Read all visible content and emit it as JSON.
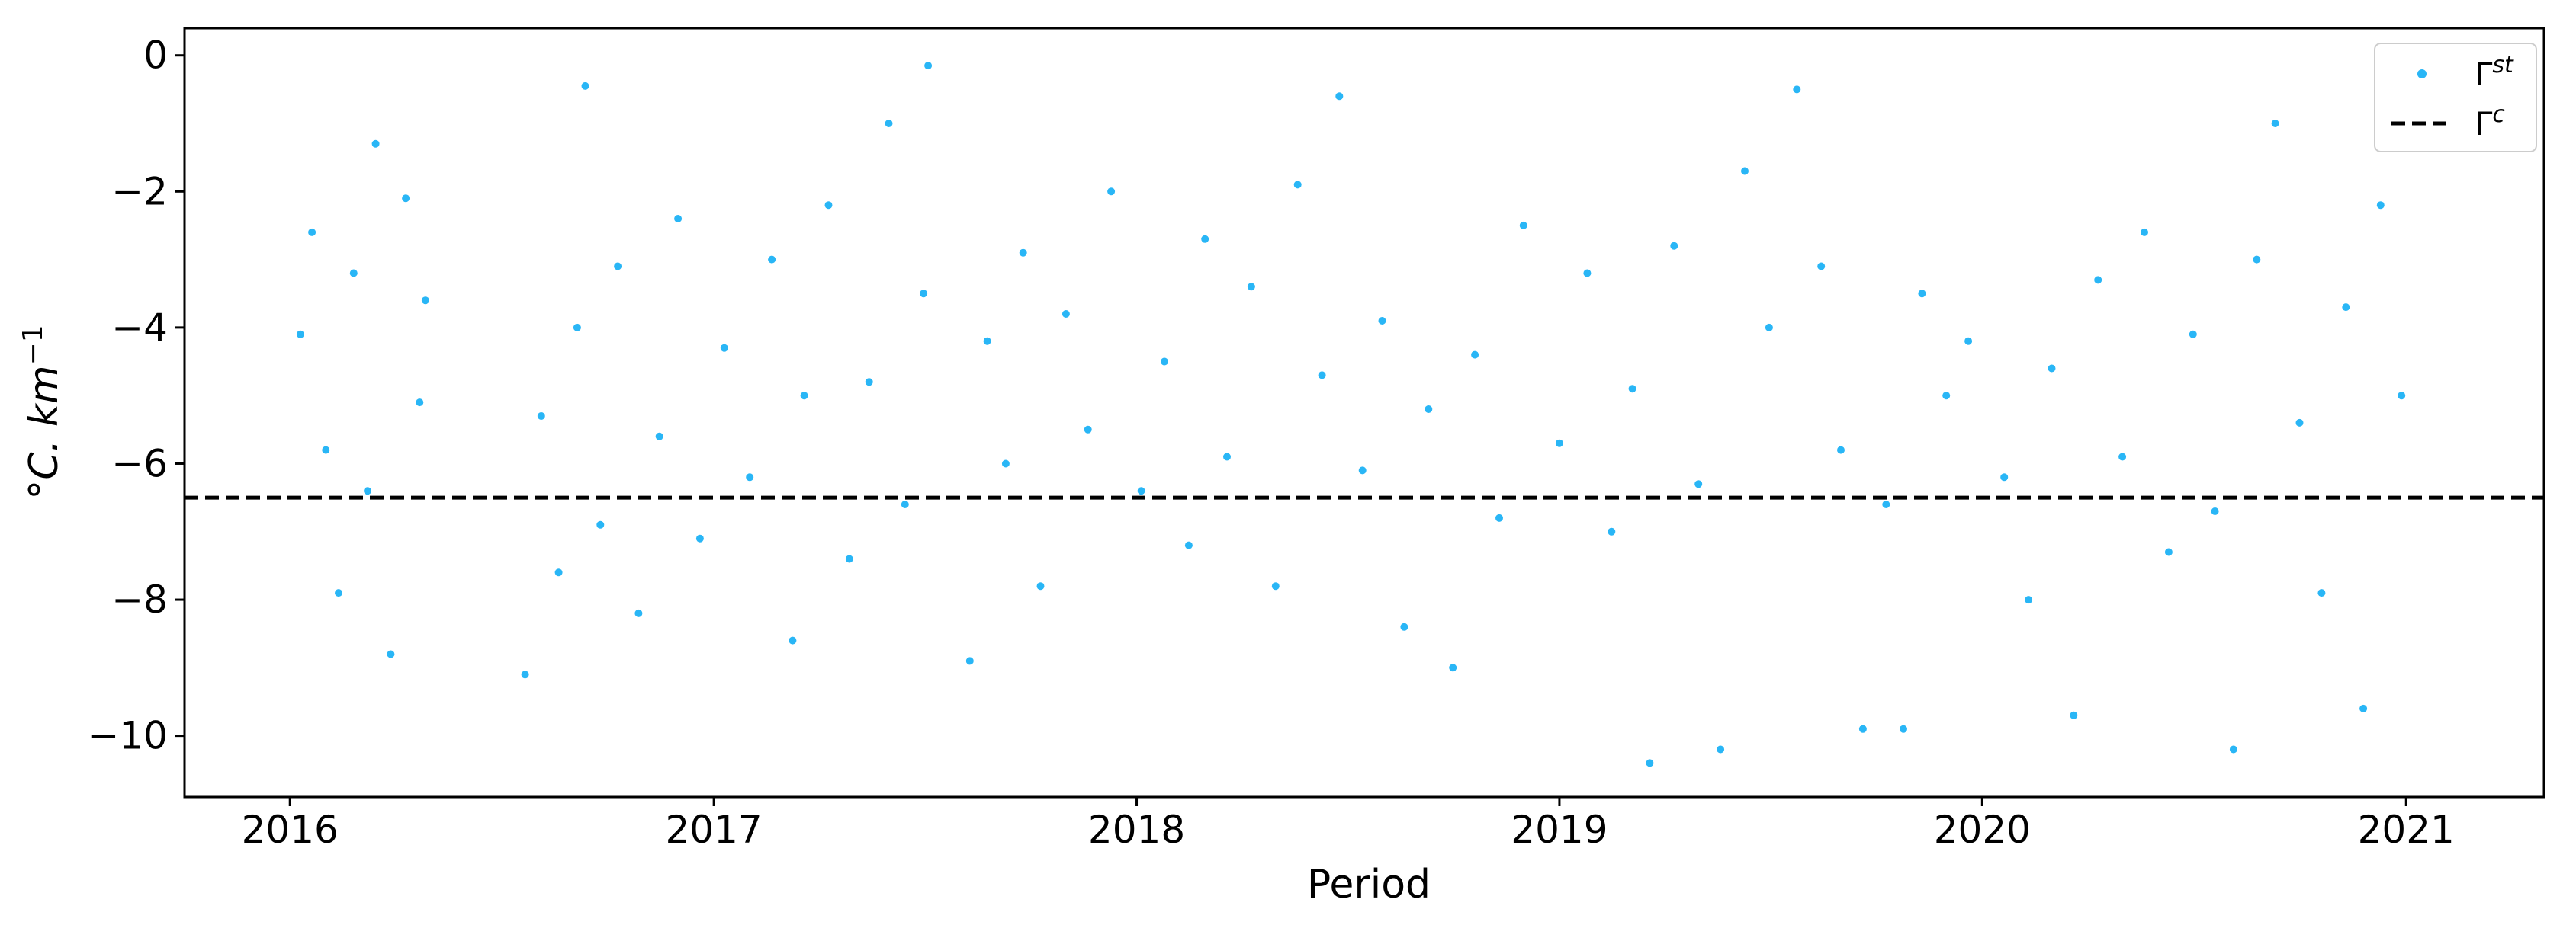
{
  "chart_data": {
    "type": "scatter",
    "xlabel": "Period",
    "ylabel_parts": {
      "degree": "°",
      "unit": "C. km",
      "exponent": "−1"
    },
    "xlim": [
      "2015-10-02",
      "2021-04-30"
    ],
    "ylim": [
      -10.9,
      0.4
    ],
    "x_ticks": [
      {
        "date": "2016-01-01",
        "label": "2016"
      },
      {
        "date": "2017-01-01",
        "label": "2017"
      },
      {
        "date": "2018-01-01",
        "label": "2018"
      },
      {
        "date": "2019-01-01",
        "label": "2019"
      },
      {
        "date": "2020-01-01",
        "label": "2020"
      },
      {
        "date": "2021-01-01",
        "label": "2021"
      }
    ],
    "y_ticks": [
      {
        "value": 0,
        "label": "0"
      },
      {
        "value": -2,
        "label": "−2"
      },
      {
        "value": -4,
        "label": "−4"
      },
      {
        "value": -6,
        "label": "−6"
      },
      {
        "value": -8,
        "label": "−8"
      },
      {
        "value": -10,
        "label": "−10"
      }
    ],
    "grid": false,
    "legend_position": "top-right",
    "series": [
      {
        "name_symbol": "Γ",
        "name_superscript": "st",
        "kind": "scatter",
        "color": "#29b6f6",
        "points": [
          [
            "2016-01-10",
            -4.1
          ],
          [
            "2016-01-20",
            -2.6
          ],
          [
            "2016-02-01",
            -5.8
          ],
          [
            "2016-02-12",
            -7.9
          ],
          [
            "2016-02-25",
            -3.2
          ],
          [
            "2016-03-08",
            -6.4
          ],
          [
            "2016-03-15",
            -1.3
          ],
          [
            "2016-03-28",
            -8.8
          ],
          [
            "2016-04-10",
            -2.1
          ],
          [
            "2016-04-22",
            -5.1
          ],
          [
            "2016-04-27",
            -3.6
          ],
          [
            "2016-07-22",
            -9.1
          ],
          [
            "2016-08-05",
            -5.3
          ],
          [
            "2016-08-20",
            -7.6
          ],
          [
            "2016-09-05",
            -4.0
          ],
          [
            "2016-09-12",
            -0.45
          ],
          [
            "2016-09-25",
            -6.9
          ],
          [
            "2016-10-10",
            -3.1
          ],
          [
            "2016-10-28",
            -8.2
          ],
          [
            "2016-11-15",
            -5.6
          ],
          [
            "2016-12-01",
            -2.4
          ],
          [
            "2016-12-20",
            -7.1
          ],
          [
            "2017-01-10",
            -4.3
          ],
          [
            "2017-02-01",
            -6.2
          ],
          [
            "2017-02-20",
            -3.0
          ],
          [
            "2017-03-10",
            -8.6
          ],
          [
            "2017-03-20",
            -5.0
          ],
          [
            "2017-04-10",
            -2.2
          ],
          [
            "2017-04-28",
            -7.4
          ],
          [
            "2017-05-15",
            -4.8
          ],
          [
            "2017-06-01",
            -1.0
          ],
          [
            "2017-06-15",
            -6.6
          ],
          [
            "2017-07-01",
            -3.5
          ],
          [
            "2017-07-05",
            -0.15
          ],
          [
            "2017-08-10",
            -8.9
          ],
          [
            "2017-08-25",
            -4.2
          ],
          [
            "2017-09-10",
            -6.0
          ],
          [
            "2017-09-25",
            -2.9
          ],
          [
            "2017-10-10",
            -7.8
          ],
          [
            "2017-11-01",
            -3.8
          ],
          [
            "2017-11-20",
            -5.5
          ],
          [
            "2017-12-10",
            -2.0
          ],
          [
            "2018-01-05",
            -6.4
          ],
          [
            "2018-01-25",
            -4.5
          ],
          [
            "2018-02-15",
            -7.2
          ],
          [
            "2018-03-01",
            -2.7
          ],
          [
            "2018-03-20",
            -5.9
          ],
          [
            "2018-04-10",
            -3.4
          ],
          [
            "2018-05-01",
            -7.8
          ],
          [
            "2018-05-20",
            -1.9
          ],
          [
            "2018-06-10",
            -4.7
          ],
          [
            "2018-06-25",
            -0.6
          ],
          [
            "2018-07-15",
            -6.1
          ],
          [
            "2018-08-01",
            -3.9
          ],
          [
            "2018-08-20",
            -8.4
          ],
          [
            "2018-09-10",
            -5.2
          ],
          [
            "2018-10-01",
            -9.0
          ],
          [
            "2018-10-20",
            -4.4
          ],
          [
            "2018-11-10",
            -6.8
          ],
          [
            "2018-12-01",
            -2.5
          ],
          [
            "2019-01-01",
            -5.7
          ],
          [
            "2019-01-25",
            -3.2
          ],
          [
            "2019-02-15",
            -7.0
          ],
          [
            "2019-03-05",
            -4.9
          ],
          [
            "2019-03-20",
            -10.4
          ],
          [
            "2019-04-10",
            -2.8
          ],
          [
            "2019-05-01",
            -6.3
          ],
          [
            "2019-05-20",
            -10.2
          ],
          [
            "2019-06-10",
            -1.7
          ],
          [
            "2019-07-01",
            -4.0
          ],
          [
            "2019-07-25",
            -0.5
          ],
          [
            "2019-08-15",
            -3.1
          ],
          [
            "2019-09-01",
            -5.8
          ],
          [
            "2019-09-20",
            -9.9
          ],
          [
            "2019-10-10",
            -6.6
          ],
          [
            "2019-10-25",
            -9.9
          ],
          [
            "2019-11-10",
            -3.5
          ],
          [
            "2019-12-01",
            -5.0
          ],
          [
            "2019-12-20",
            -4.2
          ],
          [
            "2020-01-20",
            -6.2
          ],
          [
            "2020-02-10",
            -8.0
          ],
          [
            "2020-03-01",
            -4.6
          ],
          [
            "2020-03-20",
            -9.7
          ],
          [
            "2020-04-10",
            -3.3
          ],
          [
            "2020-05-01",
            -5.9
          ],
          [
            "2020-05-20",
            -2.6
          ],
          [
            "2020-06-10",
            -7.3
          ],
          [
            "2020-07-01",
            -4.1
          ],
          [
            "2020-07-20",
            -6.7
          ],
          [
            "2020-08-05",
            -10.2
          ],
          [
            "2020-08-25",
            -3.0
          ],
          [
            "2020-09-10",
            -1.0
          ],
          [
            "2020-10-01",
            -5.4
          ],
          [
            "2020-10-20",
            -7.9
          ],
          [
            "2020-11-10",
            -3.7
          ],
          [
            "2020-11-25",
            -9.6
          ],
          [
            "2020-12-10",
            -2.2
          ],
          [
            "2020-12-28",
            -5.0
          ]
        ]
      },
      {
        "name_symbol": "Γ",
        "name_superscript": "c",
        "kind": "hline",
        "color": "#000000",
        "value": -6.5
      }
    ]
  }
}
